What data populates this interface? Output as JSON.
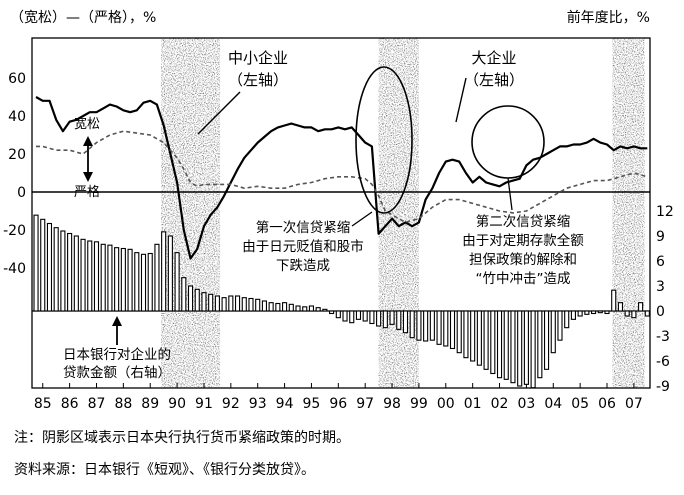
{
  "chart_data": {
    "type": "line",
    "left_axis_label": "（宽松）—（严格），%",
    "right_axis_label": "前年度比，%",
    "left_ticks": [
      60,
      40,
      20,
      0,
      -20,
      -40
    ],
    "right_ticks": [
      12,
      9,
      6,
      3,
      0,
      -3,
      -6,
      -9
    ],
    "x_ticks": [
      "85",
      "86",
      "87",
      "88",
      "89",
      "90",
      "91",
      "92",
      "93",
      "94",
      "95",
      "96",
      "97",
      "98",
      "99",
      "00",
      "01",
      "02",
      "03",
      "04",
      "05",
      "06",
      "07"
    ],
    "ylim_left": [
      -44,
      62
    ],
    "ylim_right": [
      -10.5,
      13.5
    ],
    "xlim": [
      1984.6,
      2007.6
    ],
    "zero_label_loose": "宽松",
    "zero_label_tight": "严格",
    "shaded_periods": [
      [
        1989.4,
        1991.6
      ],
      [
        1997.5,
        1999.0
      ],
      [
        2006.2,
        2007.4
      ]
    ],
    "series": [
      {
        "name": "中小企业",
        "axis": "left",
        "style": "solid",
        "x": [
          1984.75,
          1985.0,
          1985.25,
          1985.5,
          1985.75,
          1986.0,
          1986.25,
          1986.5,
          1986.75,
          1987.0,
          1987.25,
          1987.5,
          1987.75,
          1988.0,
          1988.25,
          1988.5,
          1988.75,
          1989.0,
          1989.25,
          1989.5,
          1989.75,
          1990.0,
          1990.25,
          1990.5,
          1990.75,
          1991.0,
          1991.25,
          1991.5,
          1991.75,
          1992.0,
          1992.25,
          1992.5,
          1992.75,
          1993.0,
          1993.25,
          1993.5,
          1993.75,
          1994.0,
          1994.25,
          1994.5,
          1994.75,
          1995.0,
          1995.25,
          1995.5,
          1995.75,
          1996.0,
          1996.25,
          1996.5,
          1996.75,
          1997.0,
          1997.25,
          1997.5,
          1997.75,
          1998.0,
          1998.25,
          1998.5,
          1998.75,
          1999.0,
          1999.25,
          1999.5,
          1999.75,
          2000.0,
          2000.25,
          2000.5,
          2000.75,
          2001.0,
          2001.25,
          2001.5,
          2001.75,
          2002.0,
          2002.25,
          2002.5,
          2002.75,
          2003.0,
          2003.25,
          2003.5,
          2003.75,
          2004.0,
          2004.25,
          2004.5,
          2004.75,
          2005.0,
          2005.25,
          2005.5,
          2005.75,
          2006.0,
          2006.25,
          2006.5,
          2006.75,
          2007.0,
          2007.25,
          2007.5
        ],
        "values": [
          50,
          48,
          48,
          38,
          32,
          37,
          38,
          40,
          42,
          42,
          44,
          46,
          45,
          43,
          42,
          43,
          47,
          48,
          46,
          35,
          20,
          5,
          -20,
          -35,
          -30,
          -18,
          -12,
          -8,
          -2,
          5,
          12,
          18,
          22,
          26,
          29,
          32,
          34,
          35,
          36,
          35,
          34,
          34,
          32,
          33,
          33,
          34,
          33,
          34,
          30,
          26,
          24,
          -22,
          -18,
          -14,
          -18,
          -16,
          -18,
          -16,
          -4,
          2,
          10,
          16,
          17,
          16,
          10,
          5,
          8,
          5,
          4,
          3,
          5,
          6,
          7,
          14,
          17,
          18,
          20,
          22,
          24,
          24,
          25,
          25,
          26,
          28,
          26,
          25,
          22,
          24,
          23,
          24,
          23,
          23
        ]
      },
      {
        "name": "大企业",
        "axis": "left",
        "style": "dashed",
        "x": [
          1984.75,
          1985.0,
          1985.5,
          1986.0,
          1986.5,
          1987.0,
          1987.5,
          1988.0,
          1988.5,
          1989.0,
          1989.5,
          1990.0,
          1990.25,
          1990.5,
          1990.75,
          1991.0,
          1991.5,
          1992.0,
          1992.5,
          1993.0,
          1993.5,
          1994.0,
          1994.5,
          1995.0,
          1995.5,
          1996.0,
          1996.5,
          1997.0,
          1997.25,
          1997.5,
          1997.75,
          1998.0,
          1998.5,
          1999.0,
          1999.5,
          2000.0,
          2000.5,
          2001.0,
          2001.5,
          2002.0,
          2002.5,
          2003.0,
          2003.5,
          2004.0,
          2004.5,
          2005.0,
          2005.5,
          2006.0,
          2006.5,
          2007.0,
          2007.5
        ],
        "values": [
          24,
          24,
          22,
          22,
          20,
          26,
          30,
          32,
          31,
          30,
          26,
          18,
          12,
          5,
          3,
          4,
          4,
          4,
          2,
          3,
          2,
          2,
          4,
          5,
          7,
          8,
          8,
          7,
          4,
          -2,
          -10,
          -12,
          -16,
          -14,
          -8,
          -4,
          -4,
          -6,
          -8,
          -10,
          -11,
          -10,
          -6,
          -2,
          2,
          4,
          6,
          6,
          8,
          10,
          8
        ]
      },
      {
        "name": "日本银行对企业的贷款金额（右轴）",
        "axis": "right",
        "type": "bar",
        "x": [
          1984.75,
          1985.0,
          1985.25,
          1985.5,
          1985.75,
          1986.0,
          1986.25,
          1986.5,
          1986.75,
          1987.0,
          1987.25,
          1987.5,
          1987.75,
          1988.0,
          1988.25,
          1988.5,
          1988.75,
          1989.0,
          1989.25,
          1989.5,
          1989.75,
          1990.0,
          1990.25,
          1990.5,
          1990.75,
          1991.0,
          1991.25,
          1991.5,
          1991.75,
          1992.0,
          1992.25,
          1992.5,
          1992.75,
          1993.0,
          1993.25,
          1993.5,
          1993.75,
          1994.0,
          1994.25,
          1994.5,
          1994.75,
          1995.0,
          1995.25,
          1995.5,
          1995.75,
          1996.0,
          1996.25,
          1996.5,
          1996.75,
          1997.0,
          1997.25,
          1997.5,
          1997.75,
          1998.0,
          1998.25,
          1998.5,
          1998.75,
          1999.0,
          1999.25,
          1999.5,
          1999.75,
          2000.0,
          2000.25,
          2000.5,
          2000.75,
          2001.0,
          2001.25,
          2001.5,
          2001.75,
          2002.0,
          2002.25,
          2002.5,
          2002.75,
          2003.0,
          2003.25,
          2003.5,
          2003.75,
          2004.0,
          2004.25,
          2004.5,
          2004.75,
          2005.0,
          2005.25,
          2005.5,
          2005.75,
          2006.0,
          2006.25,
          2006.5,
          2006.75,
          2007.0,
          2007.25,
          2007.5
        ],
        "values": [
          11.5,
          11.0,
          10.5,
          10.0,
          9.6,
          9.3,
          9.0,
          8.6,
          8.4,
          8.3,
          8.0,
          7.9,
          7.6,
          7.5,
          7.4,
          7.0,
          6.8,
          6.9,
          8.0,
          9.5,
          9.0,
          7.0,
          4.0,
          3.0,
          2.6,
          2.2,
          2.0,
          1.8,
          1.6,
          1.8,
          1.8,
          1.6,
          1.5,
          1.4,
          1.2,
          1.0,
          0.9,
          1.0,
          0.8,
          0.6,
          0.5,
          0.6,
          0.4,
          0.2,
          -0.3,
          -0.8,
          -1.2,
          -1.4,
          -1.0,
          -1.2,
          -1.5,
          -1.8,
          -2.0,
          -1.6,
          -2.2,
          -2.6,
          -3.2,
          -3.5,
          -3.6,
          -3.5,
          -4.0,
          -4.2,
          -4.5,
          -5.0,
          -5.6,
          -6.0,
          -6.5,
          -7.0,
          -7.5,
          -8.0,
          -8.2,
          -8.6,
          -9.0,
          -8.8,
          -9.2,
          -8.0,
          -7.0,
          -5.0,
          -3.5,
          -2.0,
          -1.0,
          -0.6,
          -0.4,
          -0.3,
          -0.2,
          -0.3,
          2.5,
          1.0,
          -0.6,
          -0.8,
          1.0,
          -0.6
        ]
      }
    ],
    "annotations": [
      {
        "text": "中小企业",
        "sub": "（左轴）"
      },
      {
        "text": "大企业",
        "sub": "（左轴）"
      },
      {
        "lines": [
          "第一次信贷紧缩",
          "由于日元贬值和股市",
          "下跌造成"
        ]
      },
      {
        "lines": [
          "第二次信贷紧缩",
          "由于对定期存款全额",
          "担保政策的解除和",
          "“竹中冲击”造成"
        ]
      },
      {
        "lines": [
          "日本银行对企业的",
          "贷款金额（右轴）"
        ]
      }
    ]
  },
  "notes": {
    "note": "注：阴影区域表示日本央行执行货币紧缩政策的时期。",
    "source": "资料来源：日本银行《短观》、《银行分类放贷》。"
  }
}
